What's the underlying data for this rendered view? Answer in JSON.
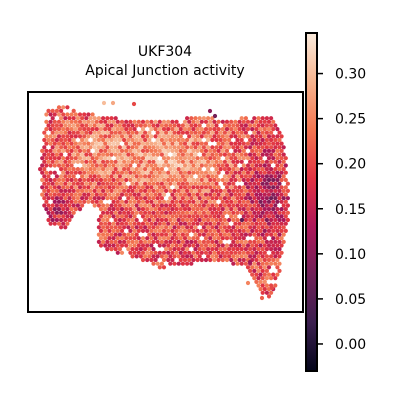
{
  "chart_data": {
    "type": "scatter",
    "title": "UKF304",
    "subtitle": "Apical Junction activity",
    "xlabel": "",
    "ylabel": "",
    "grid": false,
    "legend": "none",
    "colorbar": {
      "colormap": "rocket",
      "range": [
        -0.03,
        0.345
      ],
      "ticks": [
        "0.00",
        "0.05",
        "0.10",
        "0.15",
        "0.20",
        "0.25",
        "0.30"
      ],
      "tick_values": [
        0.0,
        0.05,
        0.1,
        0.15,
        0.2,
        0.25,
        0.3
      ],
      "position": "right"
    },
    "colormap_stops": [
      "#03051a",
      "#3b1f4f",
      "#701f57",
      "#ad1759",
      "#e13342",
      "#f37651",
      "#f6b48f",
      "#faebdd"
    ],
    "value_summary": {
      "typical_range": [
        0.1,
        0.3
      ],
      "low_region": "right lobe and lower left edge",
      "high_region": "upper center"
    }
  }
}
